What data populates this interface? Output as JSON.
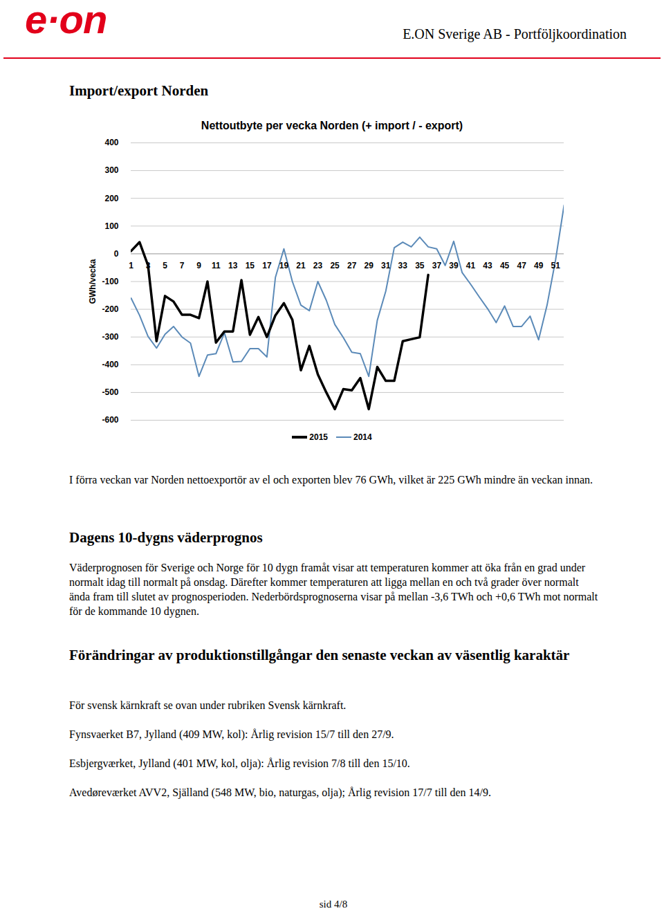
{
  "header": {
    "logo": "e·on",
    "title": "E.ON Sverige AB - Portföljkoordination"
  },
  "import_export": {
    "heading": "Import/export Norden",
    "text": "I förra veckan var Norden nettoexportör av el och exporten blev 76 GWh, vilket är 225 GWh mindre än veckan innan."
  },
  "chart_data": {
    "type": "line",
    "title": "Nettoutbyte per vecka Norden (+ import / - export)",
    "y_label": "GWh/vecka",
    "x": [
      1,
      2,
      3,
      4,
      5,
      6,
      7,
      8,
      9,
      10,
      11,
      12,
      13,
      14,
      15,
      16,
      17,
      18,
      19,
      20,
      21,
      22,
      23,
      24,
      25,
      26,
      27,
      28,
      29,
      30,
      31,
      32,
      33,
      34,
      35,
      36,
      37,
      38,
      39,
      40,
      41,
      42,
      43,
      44,
      45,
      46,
      47,
      48,
      49,
      50,
      51,
      52
    ],
    "xlim": [
      1,
      52
    ],
    "xticks": [
      1,
      3,
      5,
      7,
      9,
      11,
      13,
      15,
      17,
      19,
      21,
      23,
      25,
      27,
      29,
      31,
      33,
      35,
      37,
      39,
      41,
      43,
      45,
      47,
      49,
      51
    ],
    "ylim": [
      -600,
      400
    ],
    "yticks": [
      -600,
      -500,
      -400,
      -300,
      -200,
      -100,
      0,
      100,
      200,
      300,
      400
    ],
    "grid": true,
    "legend": "bottom",
    "series": [
      {
        "name": "2015",
        "color": "#000000",
        "values": [
          10,
          42,
          -42,
          -315,
          -152,
          -172,
          -220,
          -220,
          -232,
          -100,
          -320,
          -280,
          -280,
          -95,
          -292,
          -228,
          -300,
          -222,
          -178,
          -238,
          -420,
          -332,
          -435,
          -500,
          -560,
          -488,
          -492,
          -448,
          -560,
          -408,
          -458,
          -458,
          -315,
          -308,
          -301,
          -76,
          null,
          null,
          null,
          null,
          null,
          null,
          null,
          null,
          null,
          null,
          null,
          null,
          null,
          null,
          null,
          null
        ]
      },
      {
        "name": "2014",
        "color": "#5b8ab8",
        "values": [
          -160,
          -222,
          -298,
          -340,
          -290,
          -262,
          -300,
          -322,
          -442,
          -365,
          -360,
          -285,
          -390,
          -388,
          -342,
          -342,
          -372,
          -85,
          18,
          -100,
          -185,
          -205,
          -100,
          -168,
          -255,
          -302,
          -355,
          -360,
          -442,
          -240,
          -135,
          22,
          42,
          25,
          60,
          25,
          18,
          -42,
          45,
          -68,
          -110,
          -155,
          -198,
          -248,
          -188,
          -262,
          -262,
          -225,
          -310,
          -185,
          -22,
          175
        ]
      }
    ]
  },
  "weather": {
    "heading": "Dagens 10-dygns väderprognos",
    "text": "Väderprognosen för Sverige och Norge för 10 dygn framåt visar att temperaturen kommer att öka från en grad under normalt idag till normalt på onsdag. Därefter kommer temperaturen att ligga mellan en och två grader över normalt ända fram till slutet av prognosperioden. Nederbördsprognoserna visar på mellan -3,6 TWh och +0,6 TWh mot normalt för de kommande 10 dygnen."
  },
  "production": {
    "heading": "Förändringar av produktionstillgångar den senaste veckan av väsentlig karaktär",
    "paragraphs": [
      "För svensk kärnkraft se ovan under rubriken Svensk kärnkraft.",
      "Fynsvaerket B7, Jylland (409 MW, kol): Årlig revision 15/7 till den 27/9.",
      "Esbjergværket, Jylland (401 MW, kol, olja): Årlig revision 7/8 till den 15/10.",
      "Avedøreværket AVV2, Själland (548 MW, bio, naturgas, olja); Årlig revision 17/7 till den 14/9."
    ]
  },
  "footer": "sid 4/8"
}
